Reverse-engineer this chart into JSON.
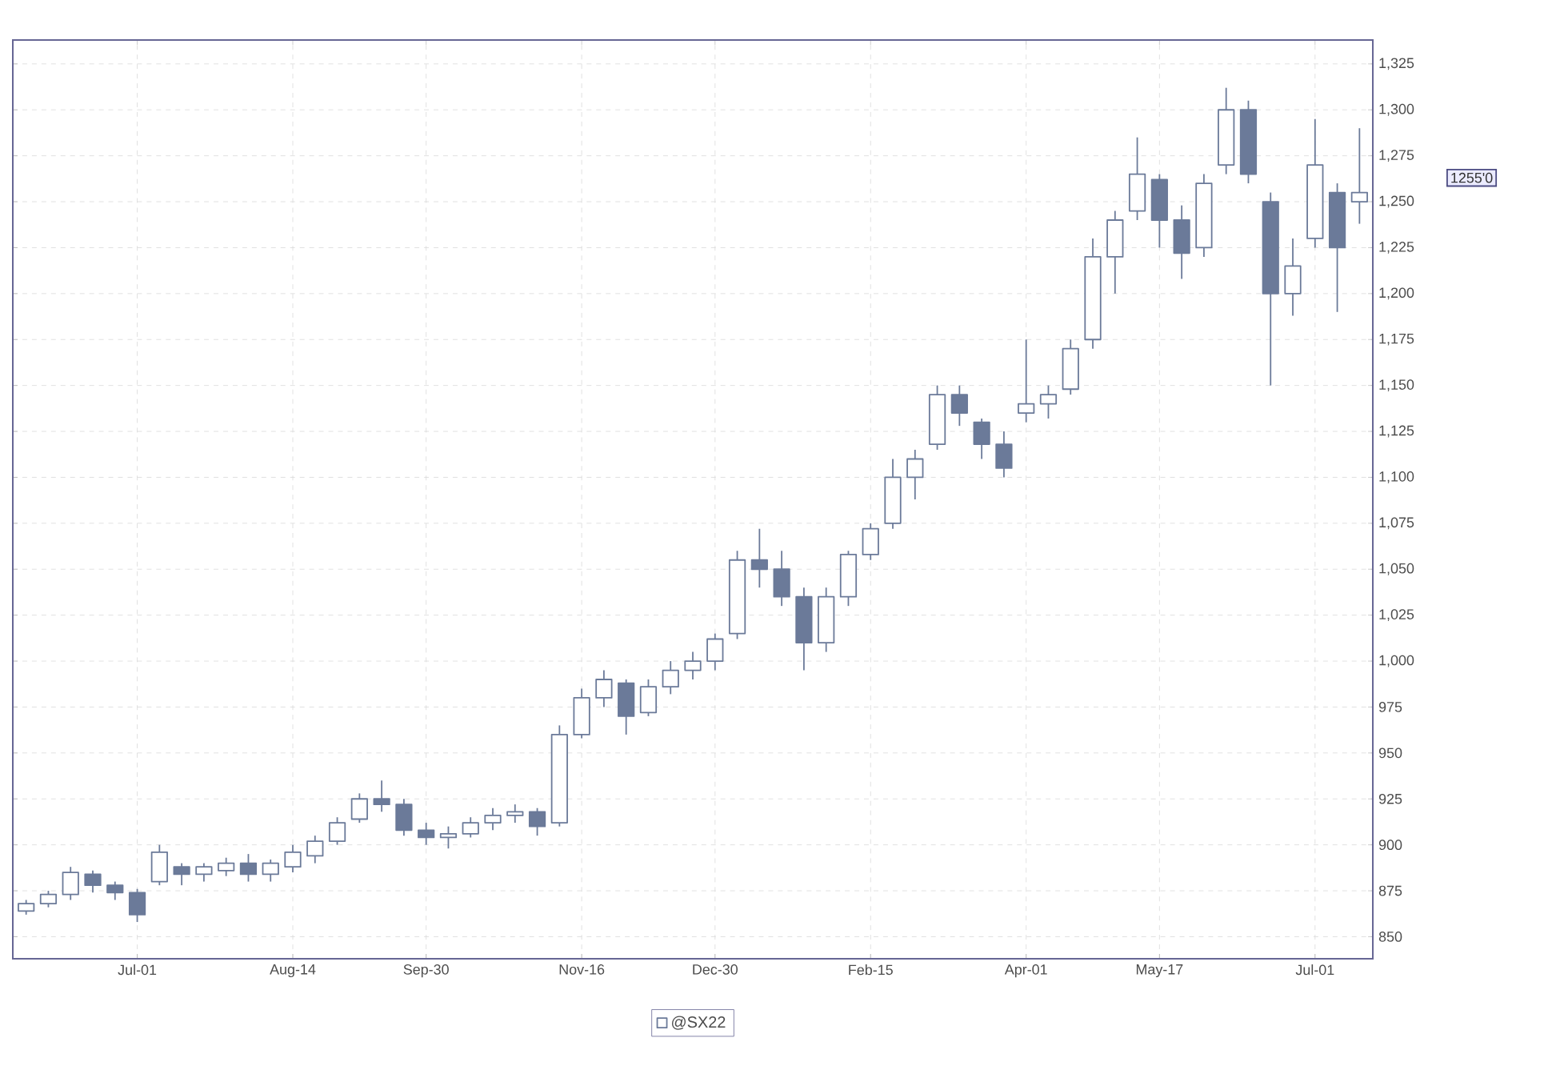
{
  "chart_data": {
    "type": "candlestick",
    "categories": [
      null,
      null,
      null,
      null,
      null,
      "Jul-01",
      null,
      null,
      null,
      null,
      null,
      null,
      "Aug-14",
      null,
      null,
      null,
      null,
      null,
      "Sep-30",
      null,
      null,
      null,
      null,
      null,
      null,
      "Nov-16",
      null,
      null,
      null,
      null,
      null,
      "Dec-30",
      null,
      null,
      null,
      null,
      null,
      null,
      "Feb-15",
      null,
      null,
      null,
      null,
      null,
      null,
      "Apr-01",
      null,
      null,
      null,
      null,
      null,
      "May-17",
      null,
      null,
      null,
      null,
      null,
      null,
      "Jul-01",
      null,
      null
    ],
    "series": [
      {
        "name": "@SX22",
        "color": "#6b7a99",
        "ohlc": [
          [
            864,
            870,
            862,
            868
          ],
          [
            868,
            875,
            866,
            873
          ],
          [
            873,
            888,
            870,
            885
          ],
          [
            884,
            886,
            874,
            878
          ],
          [
            878,
            880,
            870,
            874
          ],
          [
            874,
            876,
            858,
            862
          ],
          [
            880,
            900,
            878,
            896
          ],
          [
            888,
            890,
            878,
            884
          ],
          [
            884,
            890,
            880,
            888
          ],
          [
            886,
            893,
            883,
            890
          ],
          [
            890,
            895,
            880,
            884
          ],
          [
            884,
            892,
            880,
            890
          ],
          [
            888,
            900,
            885,
            896
          ],
          [
            894,
            905,
            890,
            902
          ],
          [
            902,
            915,
            900,
            912
          ],
          [
            914,
            928,
            912,
            925
          ],
          [
            925,
            935,
            918,
            922
          ],
          [
            922,
            925,
            905,
            908
          ],
          [
            908,
            912,
            900,
            904
          ],
          [
            904,
            910,
            898,
            906
          ],
          [
            906,
            915,
            904,
            912
          ],
          [
            912,
            920,
            908,
            916
          ],
          [
            916,
            922,
            912,
            918
          ],
          [
            918,
            920,
            905,
            910
          ],
          [
            912,
            965,
            910,
            960
          ],
          [
            960,
            985,
            958,
            980
          ],
          [
            980,
            995,
            975,
            990
          ],
          [
            988,
            990,
            960,
            970
          ],
          [
            972,
            990,
            970,
            986
          ],
          [
            986,
            1000,
            982,
            995
          ],
          [
            995,
            1005,
            990,
            1000
          ],
          [
            1000,
            1015,
            995,
            1012
          ],
          [
            1015,
            1060,
            1012,
            1055
          ],
          [
            1055,
            1072,
            1040,
            1050
          ],
          [
            1050,
            1060,
            1030,
            1035
          ],
          [
            1035,
            1040,
            995,
            1010
          ],
          [
            1010,
            1040,
            1005,
            1035
          ],
          [
            1035,
            1060,
            1030,
            1058
          ],
          [
            1058,
            1075,
            1055,
            1072
          ],
          [
            1075,
            1110,
            1072,
            1100
          ],
          [
            1100,
            1115,
            1088,
            1110
          ],
          [
            1118,
            1150,
            1115,
            1145
          ],
          [
            1145,
            1150,
            1128,
            1135
          ],
          [
            1130,
            1132,
            1110,
            1118
          ],
          [
            1118,
            1125,
            1100,
            1105
          ],
          [
            1135,
            1175,
            1130,
            1140
          ],
          [
            1140,
            1150,
            1132,
            1145
          ],
          [
            1148,
            1175,
            1145,
            1170
          ],
          [
            1175,
            1230,
            1170,
            1220
          ],
          [
            1220,
            1245,
            1200,
            1240
          ],
          [
            1245,
            1285,
            1240,
            1265
          ],
          [
            1262,
            1265,
            1225,
            1240
          ],
          [
            1240,
            1248,
            1208,
            1222
          ],
          [
            1225,
            1265,
            1220,
            1260
          ],
          [
            1270,
            1312,
            1265,
            1300
          ],
          [
            1300,
            1305,
            1260,
            1265
          ],
          [
            1250,
            1255,
            1150,
            1200
          ],
          [
            1200,
            1230,
            1188,
            1215
          ],
          [
            1230,
            1295,
            1225,
            1270
          ],
          [
            1255,
            1260,
            1190,
            1225
          ],
          [
            1250,
            1290,
            1238,
            1255
          ]
        ]
      }
    ],
    "ylim": [
      838,
      1338
    ],
    "yticks": [
      {
        "value": 850,
        "label": "850"
      },
      {
        "value": 875,
        "label": "875"
      },
      {
        "value": 900,
        "label": "900"
      },
      {
        "value": 925,
        "label": "925"
      },
      {
        "value": 950,
        "label": "950"
      },
      {
        "value": 975,
        "label": "975"
      },
      {
        "value": 1000,
        "label": "1,000"
      },
      {
        "value": 1025,
        "label": "1,025"
      },
      {
        "value": 1050,
        "label": "1,050"
      },
      {
        "value": 1075,
        "label": "1,075"
      },
      {
        "value": 1100,
        "label": "1,100"
      },
      {
        "value": 1125,
        "label": "1,125"
      },
      {
        "value": 1150,
        "label": "1,150"
      },
      {
        "value": 1175,
        "label": "1,175"
      },
      {
        "value": 1200,
        "label": "1,200"
      },
      {
        "value": 1225,
        "label": "1,225"
      },
      {
        "value": 1250,
        "label": "1,250"
      },
      {
        "value": 1275,
        "label": "1,275"
      },
      {
        "value": 1300,
        "label": "1,300"
      },
      {
        "value": 1325,
        "label": "1,325"
      }
    ],
    "annotations": [
      "1255'0"
    ],
    "grid": true,
    "legend": "bottom"
  }
}
